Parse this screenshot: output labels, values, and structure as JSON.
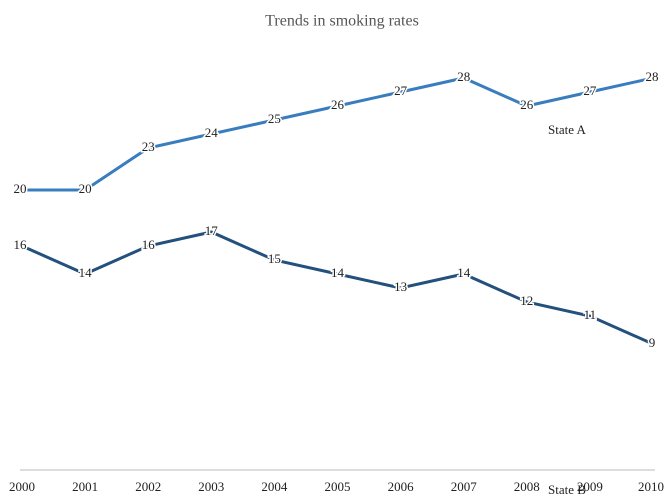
{
  "chart_data": {
    "type": "line",
    "title": "Trends in smoking rates",
    "categories": [
      "2000",
      "2001",
      "2002",
      "2003",
      "2004",
      "2005",
      "2006",
      "2007",
      "2008",
      "2009",
      "2010"
    ],
    "series": [
      {
        "name": "State A",
        "color": "#3a7dbf",
        "values": [
          20,
          20,
          23,
          24,
          25,
          26,
          27,
          28,
          26,
          27,
          28
        ]
      },
      {
        "name": "State B",
        "color": "#23507c",
        "values": [
          16,
          14,
          16,
          17,
          15,
          14,
          13,
          14,
          12,
          11,
          9
        ]
      }
    ],
    "ylim": [
      0,
      30
    ]
  }
}
